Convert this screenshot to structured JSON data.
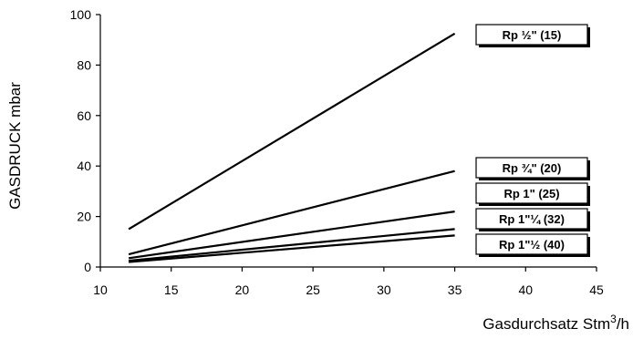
{
  "chart_data": {
    "type": "line",
    "title": "",
    "xlabel": "Gasdurchsatz Stm",
    "xlabel_sup": "3",
    "xlabel_suffix": "/h",
    "ylabel": "GASDRUCK mbar",
    "xlim": [
      10,
      45
    ],
    "ylim": [
      0,
      100
    ],
    "xticks": [
      10,
      15,
      20,
      25,
      30,
      35,
      40,
      45
    ],
    "yticks": [
      0,
      20,
      40,
      60,
      80,
      100
    ],
    "grid": false,
    "legend_placement": "right, each label boxed at the end of its line",
    "series": [
      {
        "name": "Rp ½\" (15)",
        "x": [
          12,
          35
        ],
        "y": [
          15,
          92.5
        ]
      },
      {
        "name": "Rp ¾\" (20)",
        "x": [
          12,
          35
        ],
        "y": [
          5,
          38
        ]
      },
      {
        "name": "Rp 1\" (25)",
        "x": [
          12,
          35
        ],
        "y": [
          3.5,
          22
        ]
      },
      {
        "name": "Rp 1\"¼ (32)",
        "x": [
          12,
          35
        ],
        "y": [
          2.5,
          15
        ]
      },
      {
        "name": "Rp 1\"½ (40)",
        "x": [
          12,
          35
        ],
        "y": [
          2,
          12.5
        ]
      }
    ]
  }
}
